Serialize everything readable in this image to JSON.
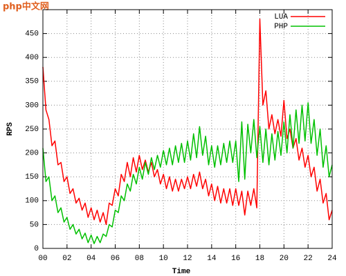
{
  "watermark": "php中文网",
  "chart_data": {
    "type": "line",
    "x_label": "Time",
    "y_label": "RPS",
    "x": [
      0,
      0.25,
      0.5,
      0.75,
      1,
      1.25,
      1.5,
      1.75,
      2,
      2.25,
      2.5,
      2.75,
      3,
      3.25,
      3.5,
      3.75,
      4,
      4.25,
      4.5,
      4.75,
      5,
      5.25,
      5.5,
      5.75,
      6,
      6.25,
      6.5,
      6.75,
      7,
      7.25,
      7.5,
      7.75,
      8,
      8.25,
      8.5,
      8.75,
      9,
      9.25,
      9.5,
      9.75,
      10,
      10.25,
      10.5,
      10.75,
      11,
      11.25,
      11.5,
      11.75,
      12,
      12.25,
      12.5,
      12.75,
      13,
      13.25,
      13.5,
      13.75,
      14,
      14.25,
      14.5,
      14.75,
      15,
      15.25,
      15.5,
      15.75,
      16,
      16.25,
      16.5,
      16.75,
      17,
      17.25,
      17.5,
      17.75,
      18,
      18.25,
      18.5,
      18.75,
      19,
      19.25,
      19.5,
      19.75,
      20,
      20.25,
      20.5,
      20.75,
      21,
      21.25,
      21.5,
      21.75,
      22,
      22.25,
      22.5,
      22.75,
      23,
      23.25,
      23.5,
      23.75,
      24
    ],
    "series": [
      {
        "name": "LUA",
        "color": "#ff0000",
        "values": [
          380,
          290,
          270,
          215,
          225,
          175,
          180,
          140,
          150,
          115,
          125,
          95,
          105,
          80,
          95,
          65,
          85,
          60,
          80,
          55,
          75,
          50,
          95,
          90,
          125,
          110,
          155,
          140,
          180,
          150,
          190,
          160,
          195,
          165,
          185,
          160,
          180,
          150,
          165,
          135,
          155,
          125,
          150,
          120,
          145,
          120,
          145,
          125,
          150,
          125,
          155,
          130,
          160,
          125,
          145,
          110,
          135,
          100,
          130,
          95,
          125,
          95,
          125,
          90,
          125,
          90,
          120,
          70,
          120,
          90,
          125,
          85,
          480,
          300,
          330,
          250,
          280,
          240,
          270,
          235,
          310,
          230,
          250,
          210,
          230,
          185,
          210,
          170,
          195,
          150,
          170,
          120,
          145,
          95,
          115,
          60,
          80
        ]
      },
      {
        "name": "PHP",
        "color": "#00c000",
        "values": [
          210,
          140,
          150,
          100,
          110,
          75,
          85,
          55,
          65,
          40,
          50,
          30,
          40,
          20,
          32,
          12,
          28,
          10,
          25,
          12,
          30,
          25,
          50,
          45,
          80,
          75,
          110,
          100,
          135,
          120,
          155,
          135,
          170,
          145,
          180,
          155,
          190,
          165,
          195,
          170,
          205,
          175,
          210,
          175,
          215,
          180,
          220,
          180,
          225,
          185,
          240,
          190,
          255,
          195,
          235,
          175,
          215,
          170,
          215,
          175,
          220,
          180,
          225,
          180,
          225,
          140,
          265,
          145,
          260,
          200,
          270,
          190,
          255,
          180,
          250,
          175,
          240,
          185,
          245,
          195,
          265,
          200,
          280,
          210,
          290,
          220,
          300,
          225,
          305,
          220,
          270,
          195,
          250,
          170,
          215,
          150,
          175
        ]
      }
    ],
    "xlim": [
      0,
      24
    ],
    "xticks": [
      {
        "value": 0,
        "label": "00"
      },
      {
        "value": 2,
        "label": "02"
      },
      {
        "value": 4,
        "label": "04"
      },
      {
        "value": 6,
        "label": "06"
      },
      {
        "value": 8,
        "label": "08"
      },
      {
        "value": 10,
        "label": "10"
      },
      {
        "value": 12,
        "label": "12"
      },
      {
        "value": 14,
        "label": "14"
      },
      {
        "value": 16,
        "label": "16"
      },
      {
        "value": 18,
        "label": "18"
      },
      {
        "value": 20,
        "label": "20"
      },
      {
        "value": 22,
        "label": "22"
      },
      {
        "value": 24,
        "label": "24"
      }
    ],
    "ylim": [
      0,
      500
    ],
    "yticks": [
      0,
      50,
      100,
      150,
      200,
      250,
      300,
      350,
      400,
      450
    ],
    "grid": true,
    "legend": "top-right"
  }
}
